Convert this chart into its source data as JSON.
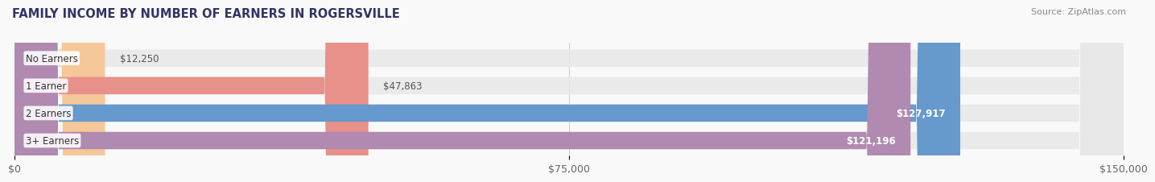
{
  "title": "FAMILY INCOME BY NUMBER OF EARNERS IN ROGERSVILLE",
  "source": "Source: ZipAtlas.com",
  "categories": [
    "No Earners",
    "1 Earner",
    "2 Earners",
    "3+ Earners"
  ],
  "values": [
    12250,
    47863,
    127917,
    121196
  ],
  "bar_colors": [
    "#f5c899",
    "#e8908a",
    "#6699cc",
    "#b08ab0"
  ],
  "bar_bg_color": "#e8e8e8",
  "label_colors": [
    "#666666",
    "#666666",
    "#ffffff",
    "#ffffff"
  ],
  "xlim": [
    0,
    150000
  ],
  "xticks": [
    0,
    75000,
    150000
  ],
  "xtick_labels": [
    "$0",
    "$75,000",
    "$150,000"
  ],
  "bar_height": 0.62,
  "title_fontsize": 10.5,
  "tick_fontsize": 9,
  "label_fontsize": 8.5,
  "source_fontsize": 8,
  "background_color": "#f9f9f9"
}
